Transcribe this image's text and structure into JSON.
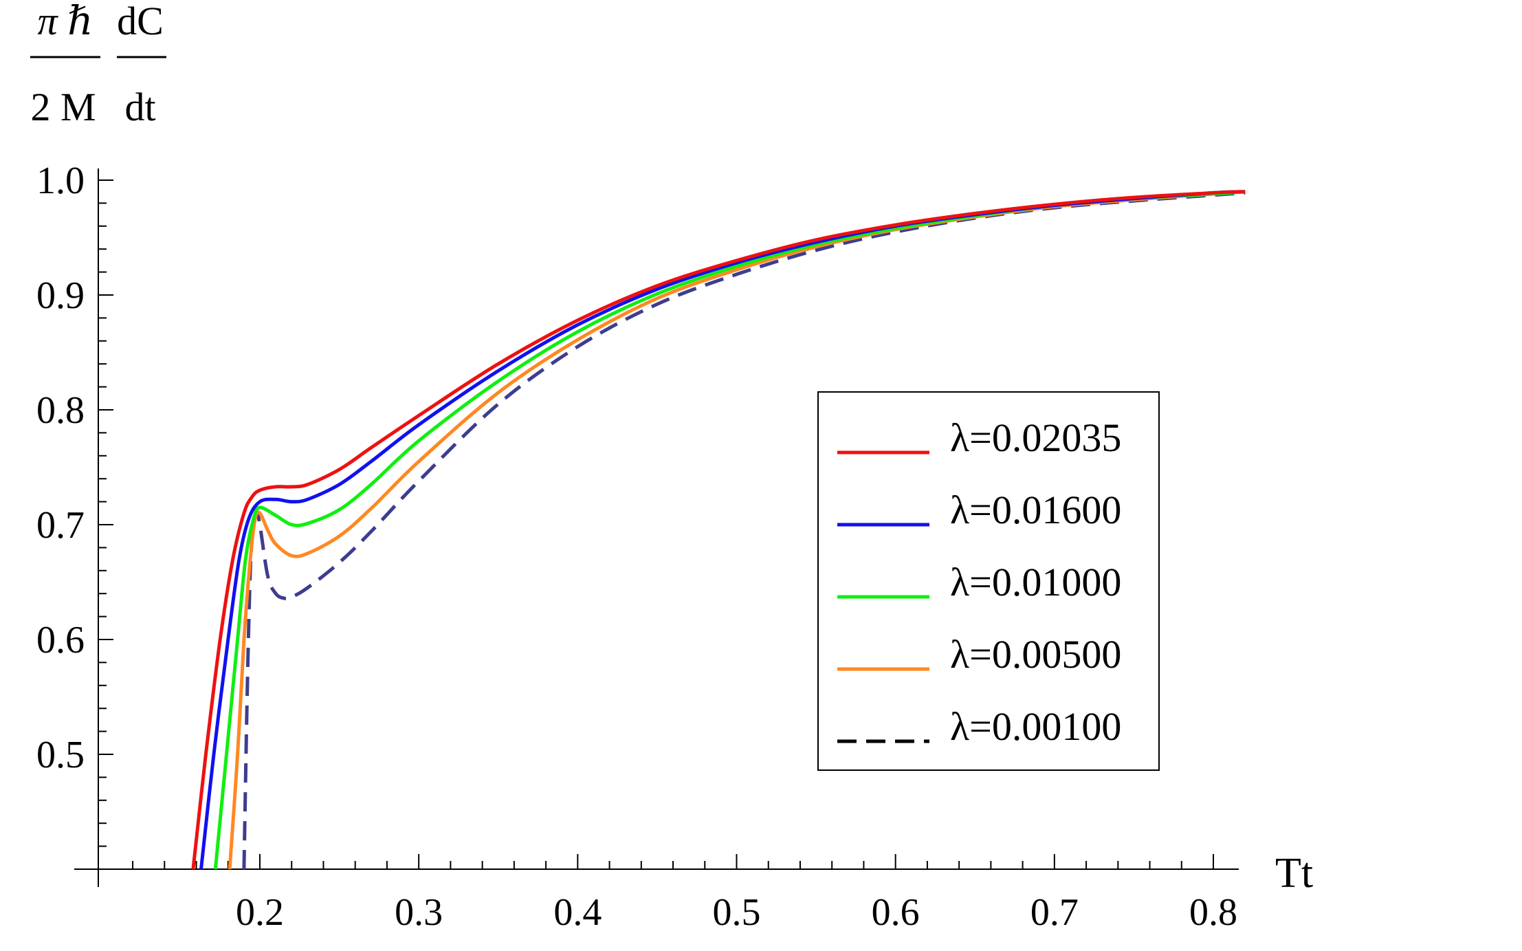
{
  "chart_data": {
    "type": "line",
    "ylabel": {
      "numerator_left": "π ℏ",
      "denominator_left": "2 M",
      "numerator_right": "dC",
      "denominator_right": "dt"
    },
    "xlabel": "Tt",
    "xlim": [
      0.1,
      0.82
    ],
    "ylim": [
      0.4,
      1.0
    ],
    "x_ticks": [
      0.2,
      0.3,
      0.4,
      0.5,
      0.6,
      0.7,
      0.8
    ],
    "x_tick_labels": [
      "0.2",
      "0.3",
      "0.4",
      "0.5",
      "0.6",
      "0.7",
      "0.8"
    ],
    "y_ticks": [
      0.5,
      0.6,
      0.7,
      0.8,
      0.9,
      1.0
    ],
    "y_tick_labels": [
      "0.5",
      "0.6",
      "0.7",
      "0.8",
      "0.9",
      "1.0"
    ],
    "grid": false,
    "legend_position": "right-center",
    "series": [
      {
        "name": "λ=0.02035",
        "color": "#ee1111",
        "dash": "solid",
        "x": [
          0.158,
          0.166,
          0.175,
          0.183,
          0.19,
          0.195,
          0.2,
          0.21,
          0.22,
          0.23,
          0.25,
          0.27,
          0.3,
          0.35,
          0.4,
          0.45,
          0.5,
          0.55,
          0.6,
          0.65,
          0.7,
          0.75,
          0.8,
          0.82
        ],
        "y": [
          0.4,
          0.5,
          0.6,
          0.67,
          0.71,
          0.724,
          0.73,
          0.733,
          0.733,
          0.735,
          0.748,
          0.767,
          0.795,
          0.84,
          0.878,
          0.908,
          0.93,
          0.948,
          0.961,
          0.971,
          0.979,
          0.985,
          0.989,
          0.99
        ]
      },
      {
        "name": "λ=0.01600",
        "color": "#1111ee",
        "dash": "solid",
        "x": [
          0.163,
          0.171,
          0.18,
          0.187,
          0.193,
          0.2,
          0.21,
          0.22,
          0.23,
          0.25,
          0.27,
          0.3,
          0.35,
          0.4,
          0.45,
          0.5,
          0.55,
          0.6,
          0.65,
          0.7,
          0.75,
          0.8,
          0.82
        ],
        "y": [
          0.4,
          0.5,
          0.6,
          0.67,
          0.705,
          0.72,
          0.722,
          0.72,
          0.722,
          0.735,
          0.755,
          0.787,
          0.834,
          0.874,
          0.905,
          0.928,
          0.946,
          0.96,
          0.97,
          0.978,
          0.984,
          0.989,
          0.99
        ]
      },
      {
        "name": "λ=0.01000",
        "color": "#11ee11",
        "dash": "solid",
        "x": [
          0.172,
          0.179,
          0.186,
          0.191,
          0.196,
          0.2,
          0.21,
          0.22,
          0.23,
          0.25,
          0.27,
          0.3,
          0.35,
          0.4,
          0.45,
          0.5,
          0.55,
          0.6,
          0.65,
          0.7,
          0.75,
          0.8,
          0.82
        ],
        "y": [
          0.4,
          0.5,
          0.6,
          0.67,
          0.705,
          0.715,
          0.708,
          0.7,
          0.701,
          0.713,
          0.735,
          0.773,
          0.825,
          0.868,
          0.901,
          0.925,
          0.944,
          0.958,
          0.969,
          0.978,
          0.984,
          0.988,
          0.99
        ]
      },
      {
        "name": "λ=0.00500",
        "color": "#ff8822",
        "dash": "solid",
        "x": [
          0.181,
          0.186,
          0.19,
          0.194,
          0.197,
          0.2,
          0.205,
          0.21,
          0.22,
          0.23,
          0.25,
          0.27,
          0.3,
          0.35,
          0.4,
          0.45,
          0.5,
          0.55,
          0.6,
          0.65,
          0.7,
          0.75,
          0.8,
          0.82
        ],
        "y": [
          0.4,
          0.5,
          0.6,
          0.67,
          0.705,
          0.71,
          0.695,
          0.683,
          0.673,
          0.675,
          0.69,
          0.714,
          0.755,
          0.815,
          0.861,
          0.897,
          0.922,
          0.942,
          0.957,
          0.968,
          0.977,
          0.983,
          0.988,
          0.99
        ]
      },
      {
        "name": "λ=0.00100",
        "color": "#3d3d8f",
        "dash": "dashed",
        "legend_color": "#000000",
        "x": [
          0.19,
          0.192,
          0.194,
          0.196,
          0.198,
          0.2,
          0.205,
          0.21,
          0.215,
          0.22,
          0.23,
          0.25,
          0.27,
          0.3,
          0.35,
          0.4,
          0.45,
          0.5,
          0.55,
          0.6,
          0.65,
          0.7,
          0.75,
          0.8,
          0.82
        ],
        "y": [
          0.4,
          0.55,
          0.66,
          0.7,
          0.71,
          0.7,
          0.655,
          0.64,
          0.636,
          0.637,
          0.645,
          0.667,
          0.694,
          0.738,
          0.805,
          0.855,
          0.892,
          0.918,
          0.939,
          0.955,
          0.967,
          0.976,
          0.982,
          0.987,
          0.989
        ]
      }
    ]
  }
}
